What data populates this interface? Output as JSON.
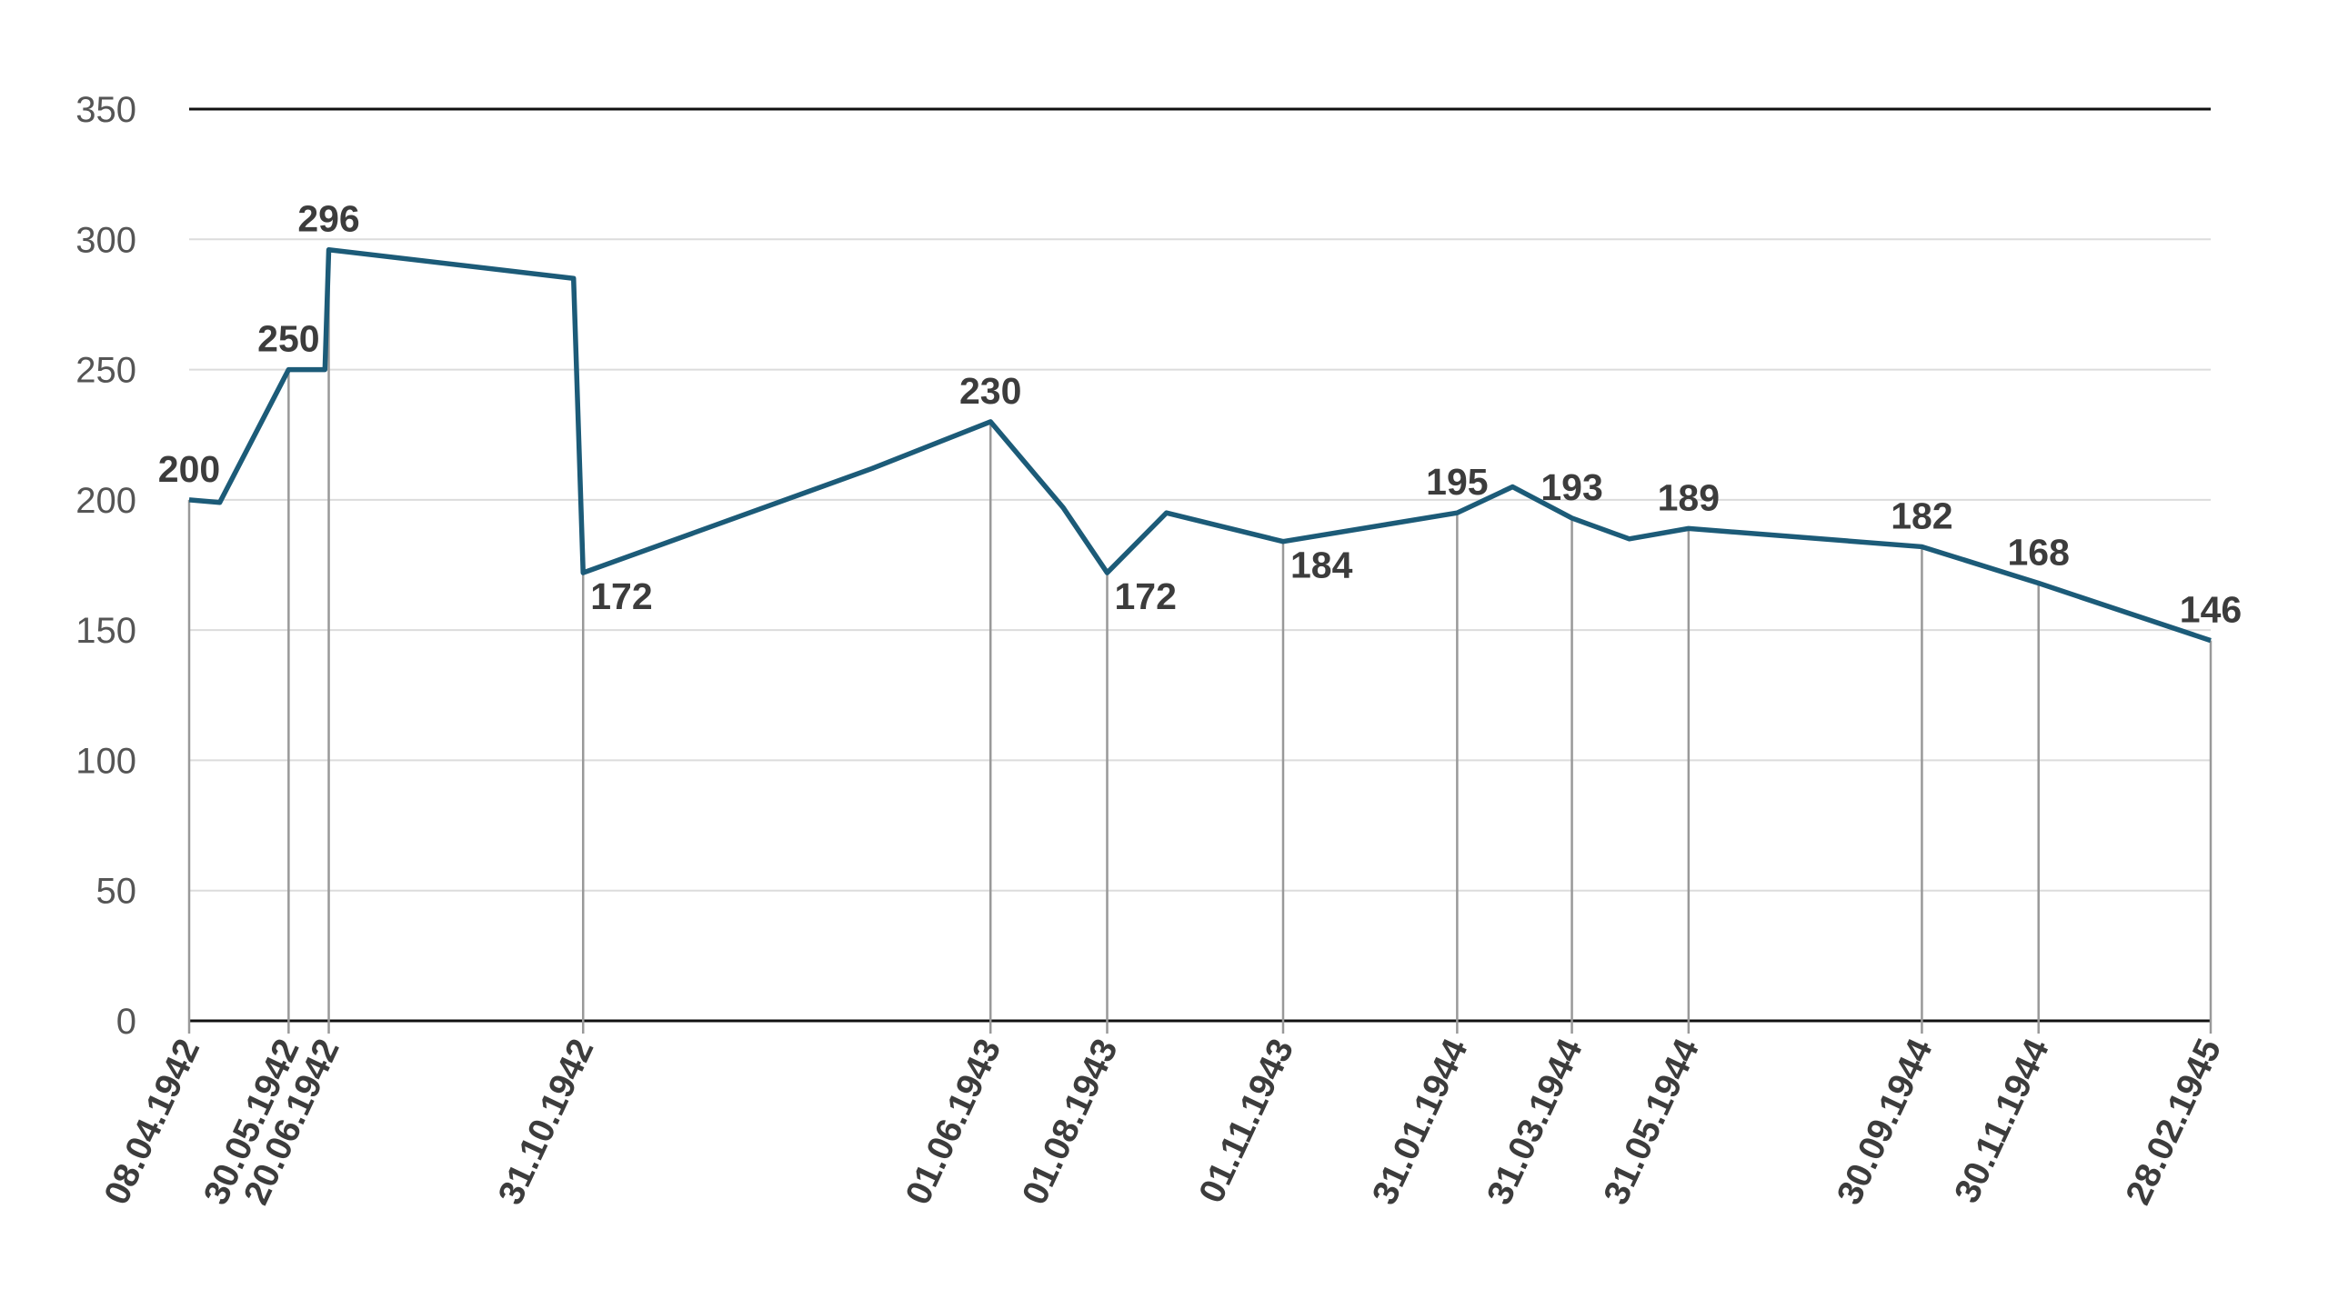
{
  "chart_data": {
    "type": "line",
    "x": [
      "08.04.1942",
      "24.04.1942",
      "30.05.1942",
      "18.06.1942",
      "20.06.1942",
      "26.10.1942",
      "31.10.1942",
      "31.03.1943",
      "01.06.1943",
      "09.07.1943",
      "01.08.1943",
      "01.09.1943",
      "01.11.1943",
      "31.01.1944",
      "29.02.1944",
      "31.03.1944",
      "30.04.1944",
      "31.05.1944",
      "30.09.1944",
      "30.11.1944",
      "28.02.1945"
    ],
    "series": [
      {
        "color": "#1c5b78",
        "values": [
          200,
          199,
          250,
          250,
          296,
          285,
          172,
          212,
          230,
          197,
          172,
          195,
          184,
          195,
          205,
          193,
          185,
          189,
          182,
          168,
          146
        ],
        "value_labels": [
          "200",
          null,
          "250",
          null,
          "296",
          null,
          "172",
          null,
          "230",
          null,
          "172",
          null,
          "184",
          "195",
          null,
          "193",
          null,
          "189",
          "182",
          "168",
          "146"
        ]
      }
    ],
    "xlim": [
      "08.04.1942",
      "28.02.1945"
    ],
    "xticks": [
      "08.04.1942",
      "30.05.1942",
      "20.06.1942",
      "31.10.1942",
      "01.06.1943",
      "01.08.1943",
      "01.11.1943",
      "31.01.1944",
      "31.03.1944",
      "31.05.1944",
      "30.09.1944",
      "30.11.1944",
      "28.02.1945"
    ],
    "ylim": [
      0,
      350
    ],
    "yticks": [
      0,
      50,
      100,
      150,
      200,
      250,
      300,
      350
    ],
    "grid": true
  }
}
